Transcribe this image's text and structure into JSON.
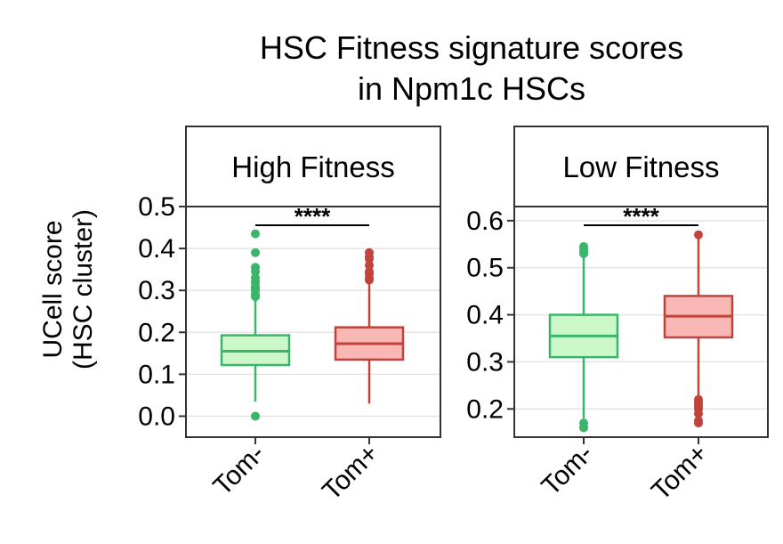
{
  "chart_data": {
    "type": "box",
    "title": [
      "HSC Fitness signature scores",
      "in Npm1c HSCs"
    ],
    "ylabel": [
      "UCell score",
      "(HSC cluster)"
    ],
    "categories": [
      "Tom-",
      "Tom+"
    ],
    "colors": {
      "Tom-": {
        "fill": "#ccf7c8",
        "line": "#3ab56a"
      },
      "Tom+": {
        "fill": "#f9b7b5",
        "line": "#c0443a"
      }
    },
    "grid": true,
    "panels": [
      {
        "label": "High Fitness",
        "ylim": [
          -0.05,
          0.5
        ],
        "yticks": [
          0.0,
          0.1,
          0.2,
          0.3,
          0.4,
          0.5
        ],
        "ytick_labels": [
          "0.0",
          "0.1",
          "0.2",
          "0.3",
          "0.4",
          "0.5"
        ],
        "significance": "****",
        "boxes": [
          {
            "category": "Tom-",
            "whisker_low": 0.035,
            "q1": 0.122,
            "median": 0.155,
            "q3": 0.193,
            "whisker_high": 0.295,
            "outliers": [
              0.0,
              0.285,
              0.29,
              0.3,
              0.305,
              0.31,
              0.32,
              0.33,
              0.345,
              0.355,
              0.39,
              0.435
            ]
          },
          {
            "category": "Tom+",
            "whisker_low": 0.03,
            "q1": 0.135,
            "median": 0.173,
            "q3": 0.212,
            "whisker_high": 0.32,
            "outliers": [
              0.325,
              0.33,
              0.34,
              0.345,
              0.36,
              0.375,
              0.38,
              0.39
            ]
          }
        ]
      },
      {
        "label": "Low Fitness",
        "ylim": [
          0.14,
          0.63
        ],
        "yticks": [
          0.2,
          0.3,
          0.4,
          0.5,
          0.6
        ],
        "ytick_labels": [
          "0.2",
          "0.3",
          "0.4",
          "0.5",
          "0.6"
        ],
        "significance": "****",
        "boxes": [
          {
            "category": "Tom-",
            "whisker_low": 0.18,
            "q1": 0.31,
            "median": 0.355,
            "q3": 0.4,
            "whisker_high": 0.525,
            "outliers": [
              0.16,
              0.17,
              0.53,
              0.535,
              0.54,
              0.545
            ]
          },
          {
            "category": "Tom+",
            "whisker_low": 0.225,
            "q1": 0.352,
            "median": 0.397,
            "q3": 0.44,
            "whisker_high": 0.565,
            "outliers": [
              0.17,
              0.175,
              0.19,
              0.2,
              0.205,
              0.21,
              0.215,
              0.22,
              0.57
            ]
          }
        ]
      }
    ]
  }
}
